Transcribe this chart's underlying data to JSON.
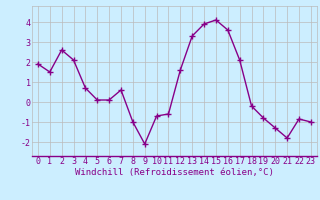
{
  "x": [
    0,
    1,
    2,
    3,
    4,
    5,
    6,
    7,
    8,
    9,
    10,
    11,
    12,
    13,
    14,
    15,
    16,
    17,
    18,
    19,
    20,
    21,
    22,
    23
  ],
  "y": [
    1.9,
    1.5,
    2.6,
    2.1,
    0.7,
    0.1,
    0.1,
    0.6,
    -1.0,
    -2.1,
    -0.7,
    -0.6,
    1.6,
    3.3,
    3.9,
    4.1,
    3.6,
    2.1,
    -0.2,
    -0.8,
    -1.3,
    -1.8,
    -0.85,
    -1.0
  ],
  "line_color": "#880088",
  "marker": "+",
  "marker_size": 4,
  "linewidth": 1.0,
  "bg_color": "#cceeff",
  "grid_color": "#bbbbbb",
  "xlabel": "Windchill (Refroidissement éolien,°C)",
  "xlabel_color": "#880088",
  "xlabel_fontsize": 6.5,
  "tick_color": "#880088",
  "tick_fontsize": 6.0,
  "ytick_labels": [
    "-2",
    "-1",
    "0",
    "1",
    "2",
    "3",
    "4"
  ],
  "ytick_values": [
    -2,
    -1,
    0,
    1,
    2,
    3,
    4
  ],
  "ylim": [
    -2.7,
    4.8
  ],
  "xlim": [
    -0.5,
    23.5
  ]
}
